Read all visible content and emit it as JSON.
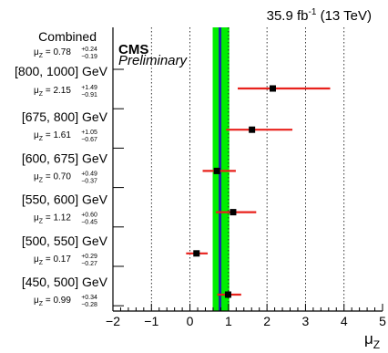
{
  "header": {
    "lumi_pre": "35.9 fb",
    "lumi_exp": "-1",
    "lumi_post": " (13 TeV)"
  },
  "labels": {
    "cms": "CMS",
    "preliminary": "Preliminary"
  },
  "chart_data": {
    "type": "scatter",
    "xlabel": "μ",
    "xlabel_sub": "Z",
    "xlim": [
      -2,
      5
    ],
    "xticks": [
      "−2",
      "−1",
      "0",
      "1",
      "2",
      "3",
      "4",
      "5"
    ],
    "grid_x": [
      -1,
      0,
      1,
      2,
      3,
      4
    ],
    "combined": {
      "title": "Combined",
      "mu": 0.78,
      "mu_str": "0.78",
      "up": 0.24,
      "down": 0.19,
      "up_str": "+0.24",
      "down_str": "−0.19",
      "band_1sigma_color": "#000080",
      "band_2sigma_color": "#00ee00",
      "line_color": "#1a2aa8"
    },
    "point_color": "#000000",
    "bar_color": "#e8211c",
    "categories": [
      {
        "title": "[800, 1000] GeV",
        "mu": 2.15,
        "mu_str": "2.15",
        "up": 1.49,
        "down": 0.91,
        "up_str": "+1.49",
        "down_str": "−0.91"
      },
      {
        "title": "[675, 800] GeV",
        "mu": 1.61,
        "mu_str": "1.61",
        "up": 1.05,
        "down": 0.67,
        "up_str": "+1.05",
        "down_str": "−0.67"
      },
      {
        "title": "[600, 675] GeV",
        "mu": 0.7,
        "mu_str": "0.70",
        "up": 0.49,
        "down": 0.37,
        "up_str": "+0.49",
        "down_str": "−0.37"
      },
      {
        "title": "[550, 600] GeV",
        "mu": 1.12,
        "mu_str": "1.12",
        "up": 0.6,
        "down": 0.45,
        "up_str": "+0.60",
        "down_str": "−0.45"
      },
      {
        "title": "[500, 550] GeV",
        "mu": 0.17,
        "mu_str": "0.17",
        "up": 0.29,
        "down": 0.27,
        "up_str": "+0.29",
        "down_str": "−0.27"
      },
      {
        "title": "[450, 500] GeV",
        "mu": 0.99,
        "mu_str": "0.99",
        "up": 0.34,
        "down": 0.28,
        "up_str": "+0.34",
        "down_str": "−0.28"
      }
    ]
  }
}
